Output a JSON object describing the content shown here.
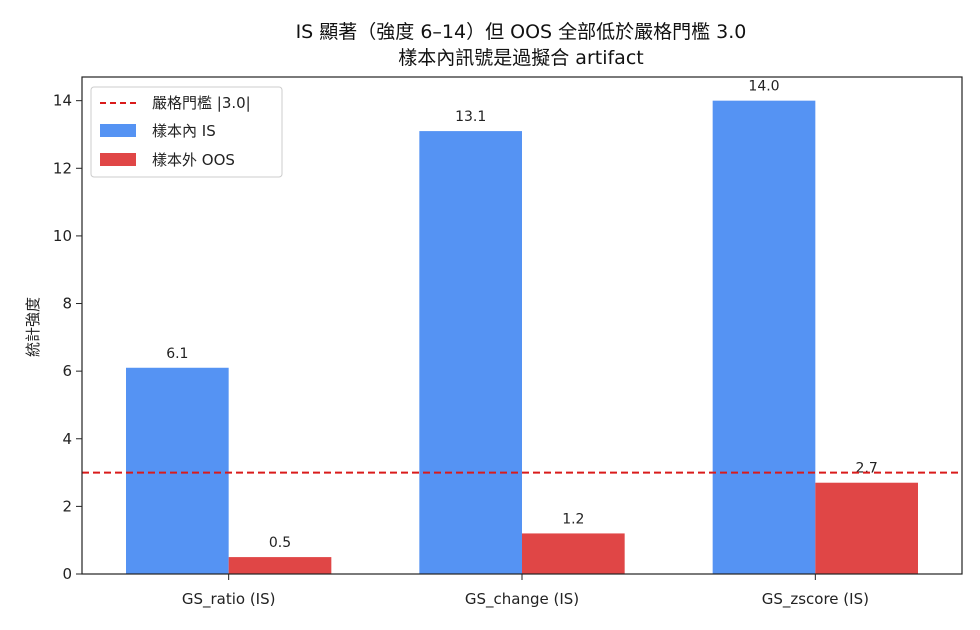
{
  "chart_data": {
    "type": "bar",
    "title": "IS 顯著（強度 6–14）但 OOS 全部低於嚴格門檻 3.0",
    "subtitle": "樣本內訊號是過擬合 artifact",
    "xlabel": "",
    "ylabel": "統計強度",
    "ylim": [
      0,
      14.7
    ],
    "yticks": [
      0,
      2,
      4,
      6,
      8,
      10,
      12,
      14
    ],
    "categories": [
      "GS_ratio (IS)",
      "GS_change (IS)",
      "GS_zscore (IS)"
    ],
    "series": [
      {
        "name": "樣本內 IS",
        "color": "#5593f3",
        "values": [
          6.1,
          13.1,
          14.0
        ],
        "labels": [
          "6.1",
          "13.1",
          "14.0"
        ]
      },
      {
        "name": "樣本外 OOS",
        "color": "#e04646",
        "values": [
          0.5,
          1.2,
          2.7
        ],
        "labels": [
          "0.5",
          "1.2",
          "2.7"
        ]
      }
    ],
    "threshold": {
      "name": "嚴格門檻 |3.0|",
      "value": 3.0,
      "color": "#d91b1b",
      "style": "dashed"
    },
    "legend_position": "top-left",
    "grid": false
  }
}
